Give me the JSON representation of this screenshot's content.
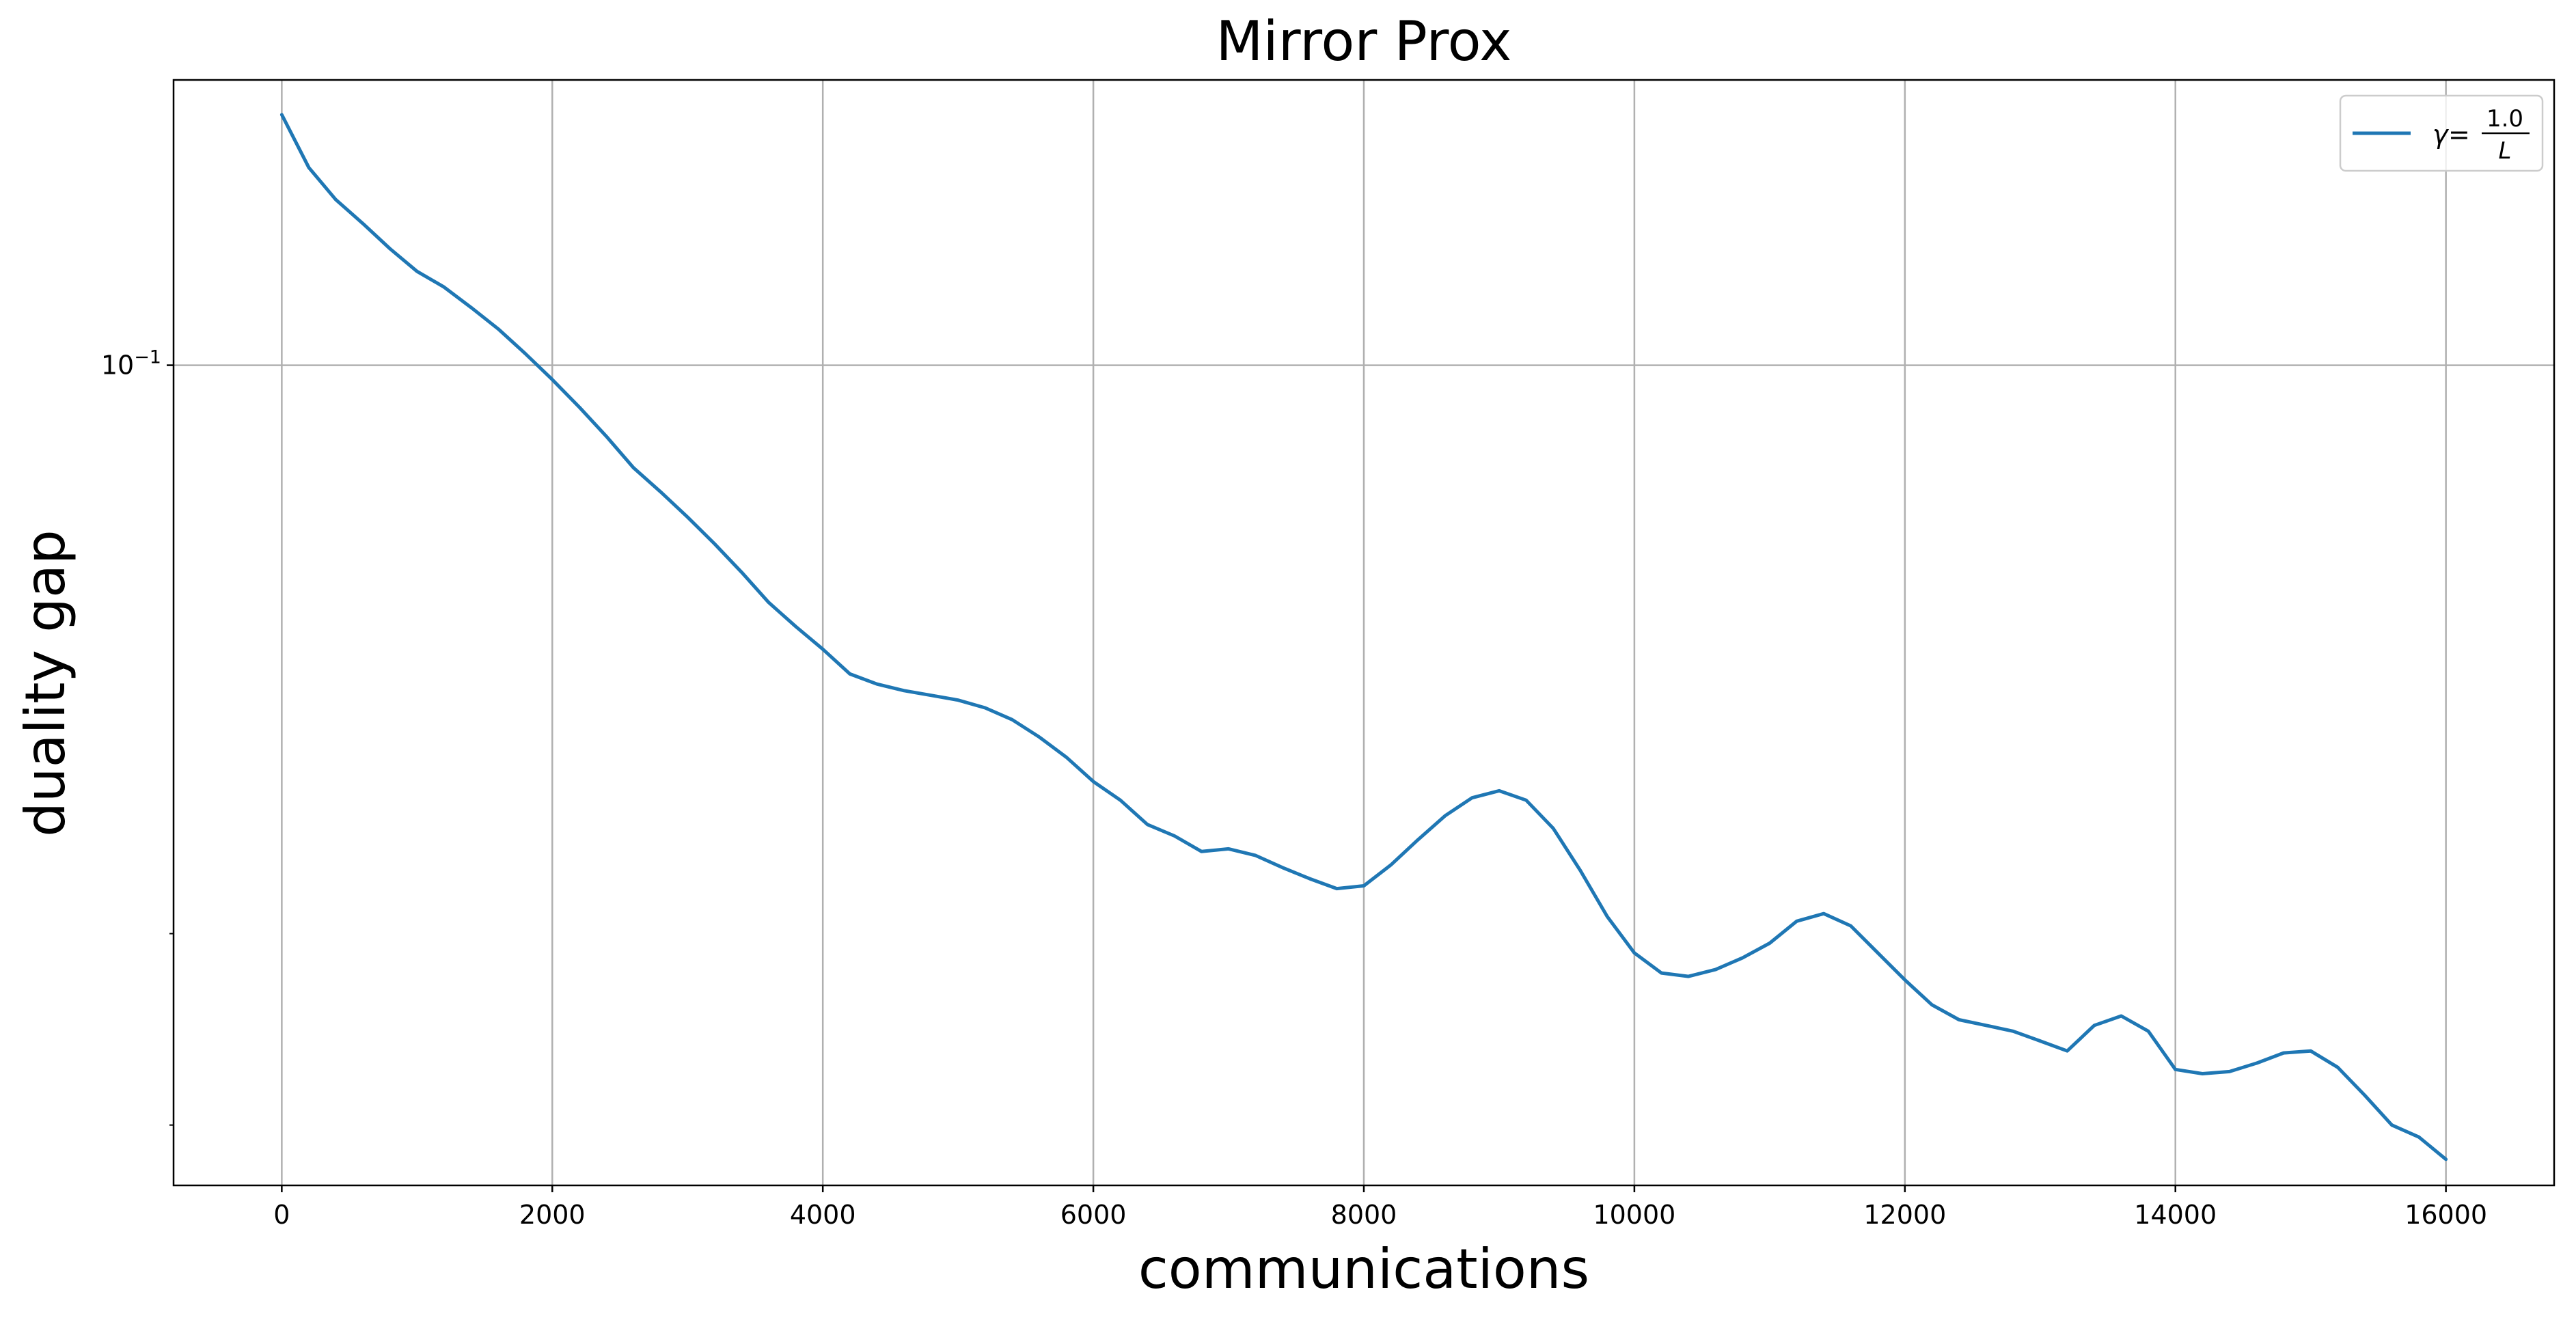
{
  "chart_data": {
    "type": "line",
    "title": "Mirror Prox",
    "xlabel": "communications",
    "ylabel": "duality gap",
    "xlim": [
      -800,
      16800
    ],
    "ylim": [
      0.0176,
      0.183
    ],
    "yscale": "log",
    "grid": true,
    "legend_position": "top-right",
    "x_ticks": [
      0,
      2000,
      4000,
      6000,
      8000,
      10000,
      12000,
      14000,
      16000
    ],
    "x_tick_labels": [
      "0",
      "2000",
      "4000",
      "6000",
      "8000",
      "10000",
      "12000",
      "14000",
      "16000"
    ],
    "y_ticks": [
      0.1
    ],
    "y_tick_labels": [
      {
        "base": "10",
        "exp": "−1"
      }
    ],
    "y_minor_ticks": [
      0.02,
      0.03
    ],
    "line_color": "#1f77b4",
    "series": [
      {
        "legend": {
          "gamma": "γ",
          "equals": "=",
          "numerator": "1.0",
          "denominator": "L"
        },
        "x": [
          0,
          200,
          400,
          600,
          800,
          1000,
          1200,
          1400,
          1600,
          1800,
          2000,
          2200,
          2400,
          2600,
          2800,
          3000,
          3200,
          3400,
          3600,
          3800,
          4000,
          4200,
          4400,
          4600,
          4800,
          5000,
          5200,
          5400,
          5600,
          5800,
          6000,
          6200,
          6400,
          6600,
          6800,
          7000,
          7200,
          7400,
          7600,
          7800,
          8000,
          8200,
          8400,
          8600,
          8800,
          9000,
          9200,
          9400,
          9600,
          9800,
          10000,
          10200,
          10400,
          10600,
          10800,
          11000,
          11200,
          11400,
          11600,
          11800,
          12000,
          12200,
          12400,
          12600,
          12800,
          13000,
          13200,
          13400,
          13600,
          13800,
          14000,
          14200,
          14400,
          14600,
          14800,
          15000,
          15200,
          15400,
          15600,
          15800,
          16000
        ],
        "y": [
          0.17,
          0.152,
          0.142,
          0.135,
          0.128,
          0.122,
          0.118,
          0.113,
          0.108,
          0.1025,
          0.097,
          0.0915,
          0.086,
          0.0805,
          0.0765,
          0.0725,
          0.0685,
          0.0645,
          0.0605,
          0.0575,
          0.0548,
          0.052,
          0.0509,
          0.0502,
          0.0497,
          0.0492,
          0.0484,
          0.0472,
          0.0455,
          0.0436,
          0.0414,
          0.0398,
          0.0378,
          0.0369,
          0.0357,
          0.0359,
          0.0354,
          0.0345,
          0.0337,
          0.033,
          0.0332,
          0.0347,
          0.0366,
          0.0385,
          0.04,
          0.0406,
          0.0398,
          0.0375,
          0.0343,
          0.0311,
          0.0288,
          0.0276,
          0.0274,
          0.0278,
          0.0285,
          0.0294,
          0.0308,
          0.0313,
          0.0305,
          0.0288,
          0.0272,
          0.0258,
          0.025,
          0.0247,
          0.0244,
          0.0239,
          0.0234,
          0.0247,
          0.0252,
          0.0244,
          0.0225,
          0.0223,
          0.0224,
          0.0228,
          0.0233,
          0.0234,
          0.0226,
          0.0213,
          0.02,
          0.0195,
          0.0186
        ]
      }
    ]
  }
}
